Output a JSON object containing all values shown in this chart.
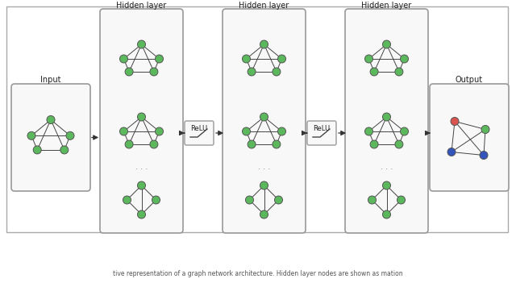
{
  "node_color_green": "#5cb85c",
  "node_color_red": "#d9534f",
  "node_color_blue": "#3355bb",
  "edge_color": "#444444",
  "box_edge_color": "#999999",
  "box_face_color": "#f8f8f8",
  "outer_border_color": "#aaaaaa",
  "arrow_color": "#333333",
  "text_color": "#222222",
  "input_label": "Input",
  "hidden_label": "Hidden layer",
  "output_label": "Output",
  "relu_label": "ReLU",
  "dots_text": "· · ·",
  "caption": "tive representation of a graph network architecture. Hidden layer nodes are shown as mation"
}
